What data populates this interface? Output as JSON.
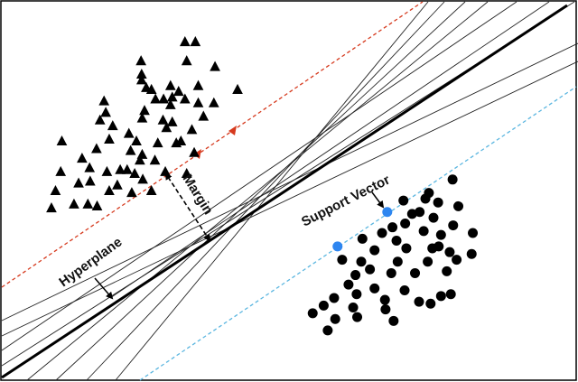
{
  "labels": {
    "margin": "Margin",
    "hyperplane": "Hyperplane",
    "support_vector": "Support Vector"
  },
  "colors": {
    "frame": "#000000",
    "class_a_marker": "#000000",
    "class_b_marker": "#000000",
    "support_vector": "#2e86f0",
    "margin_class_a": "#d63a1e",
    "margin_class_b": "#5bb6e0",
    "hyperplane": "#000000",
    "candidate_line": "#222222"
  },
  "icons": {
    "class_a": "triangle-marker",
    "class_b": "circle-marker",
    "support_vector": "circle-marker",
    "margin_arrow": "double-arrow",
    "direction_arrow": "arrowhead"
  },
  "chart_data": {
    "type": "scatter",
    "legend": "none",
    "grid": false,
    "series": [
      {
        "marker": "triangle",
        "color": "#000000",
        "points": [
          [
            0.32,
            0.11
          ],
          [
            0.338,
            0.11
          ],
          [
            0.244,
            0.16
          ],
          [
            0.323,
            0.16
          ],
          [
            0.372,
            0.175
          ],
          [
            0.245,
            0.195
          ],
          [
            0.245,
            0.21
          ],
          [
            0.411,
            0.235
          ],
          [
            0.343,
            0.225
          ],
          [
            0.309,
            0.24
          ],
          [
            0.253,
            0.23
          ],
          [
            0.269,
            0.26
          ],
          [
            0.283,
            0.26
          ],
          [
            0.32,
            0.26
          ],
          [
            0.343,
            0.27
          ],
          [
            0.37,
            0.27
          ],
          [
            0.295,
            0.275
          ],
          [
            0.25,
            0.29
          ],
          [
            0.18,
            0.265
          ],
          [
            0.183,
            0.295
          ],
          [
            0.246,
            0.31
          ],
          [
            0.173,
            0.315
          ],
          [
            0.298,
            0.32
          ],
          [
            0.332,
            0.34
          ],
          [
            0.223,
            0.35
          ],
          [
            0.189,
            0.365
          ],
          [
            0.236,
            0.37
          ],
          [
            0.107,
            0.37
          ],
          [
            0.273,
            0.375
          ],
          [
            0.305,
            0.375
          ],
          [
            0.167,
            0.39
          ],
          [
            0.226,
            0.395
          ],
          [
            0.246,
            0.405
          ],
          [
            0.142,
            0.415
          ],
          [
            0.268,
            0.42
          ],
          [
            0.155,
            0.44
          ],
          [
            0.208,
            0.445
          ],
          [
            0.105,
            0.45
          ],
          [
            0.22,
            0.445
          ],
          [
            0.286,
            0.45
          ],
          [
            0.185,
            0.45
          ],
          [
            0.233,
            0.455
          ],
          [
            0.323,
            0.455
          ],
          [
            0.247,
            0.47
          ],
          [
            0.156,
            0.475
          ],
          [
            0.136,
            0.48
          ],
          [
            0.203,
            0.485
          ],
          [
            0.189,
            0.5
          ],
          [
            0.262,
            0.5
          ],
          [
            0.228,
            0.505
          ],
          [
            0.242,
            0.42
          ],
          [
            0.336,
            0.4
          ],
          [
            0.313,
            0.37
          ],
          [
            0.295,
            0.225
          ],
          [
            0.262,
            0.235
          ],
          [
            0.288,
            0.335
          ],
          [
            0.195,
            0.33
          ],
          [
            0.096,
            0.5
          ],
          [
            0.152,
            0.535
          ],
          [
            0.089,
            0.545
          ],
          [
            0.128,
            0.535
          ],
          [
            0.168,
            0.54
          ],
          [
            0.298,
            0.255
          ],
          [
            0.282,
            0.315
          ],
          [
            0.352,
            0.305
          ]
        ]
      },
      {
        "marker": "circle",
        "color": "#000000",
        "points": [
          [
            0.783,
            0.47
          ],
          [
            0.742,
            0.505
          ],
          [
            0.736,
            0.52
          ],
          [
            0.758,
            0.53
          ],
          [
            0.793,
            0.54
          ],
          [
            0.713,
            0.56
          ],
          [
            0.75,
            0.57
          ],
          [
            0.701,
            0.585
          ],
          [
            0.784,
            0.59
          ],
          [
            0.733,
            0.605
          ],
          [
            0.818,
            0.61
          ],
          [
            0.763,
            0.615
          ],
          [
            0.661,
            0.61
          ],
          [
            0.627,
            0.625
          ],
          [
            0.686,
            0.63
          ],
          [
            0.703,
            0.65
          ],
          [
            0.748,
            0.65
          ],
          [
            0.648,
            0.655
          ],
          [
            0.778,
            0.66
          ],
          [
            0.816,
            0.665
          ],
          [
            0.592,
            0.68
          ],
          [
            0.625,
            0.685
          ],
          [
            0.688,
            0.685
          ],
          [
            0.74,
            0.685
          ],
          [
            0.79,
            0.68
          ],
          [
            0.64,
            0.705
          ],
          [
            0.718,
            0.715
          ],
          [
            0.773,
            0.71
          ],
          [
            0.677,
            0.715
          ],
          [
            0.615,
            0.72
          ],
          [
            0.603,
            0.745
          ],
          [
            0.648,
            0.755
          ],
          [
            0.7,
            0.76
          ],
          [
            0.78,
            0.77
          ],
          [
            0.617,
            0.77
          ],
          [
            0.578,
            0.78
          ],
          [
            0.666,
            0.785
          ],
          [
            0.745,
            0.795
          ],
          [
            0.56,
            0.8
          ],
          [
            0.618,
            0.83
          ],
          [
            0.58,
            0.835
          ],
          [
            0.681,
            0.84
          ],
          [
            0.725,
            0.79
          ],
          [
            0.763,
            0.775
          ],
          [
            0.726,
            0.555
          ],
          [
            0.698,
            0.525
          ],
          [
            0.759,
            0.645
          ],
          [
            0.679,
            0.595
          ],
          [
            0.541,
            0.82
          ],
          [
            0.567,
            0.865
          ],
          [
            0.667,
            0.81
          ],
          [
            0.611,
            0.805
          ]
        ]
      },
      {
        "marker": "circle",
        "color": "#2e86f0",
        "points": [
          [
            0.67,
            0.555
          ],
          [
            0.584,
            0.645
          ]
        ]
      }
    ]
  }
}
